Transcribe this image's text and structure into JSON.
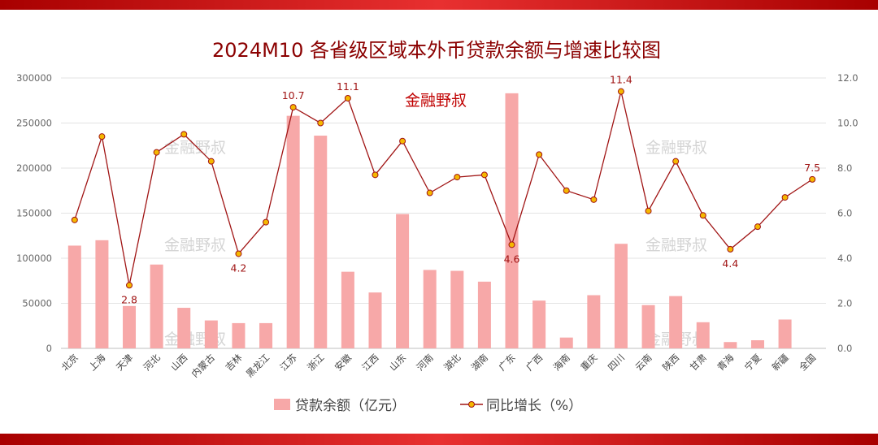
{
  "title": "2024M10 各省级区域本外币贷款余额与增速比较图",
  "brand": "金融野叔",
  "colors": {
    "bar": "#f7a8a8",
    "line": "#a01414",
    "marker_fill": "#f5b800",
    "marker_stroke": "#a01414",
    "band": "#c00000"
  },
  "chart_data": {
    "type": "bar",
    "categories": [
      "北京",
      "上海",
      "天津",
      "河北",
      "山西",
      "内蒙古",
      "吉林",
      "黑龙江",
      "江苏",
      "浙江",
      "安徽",
      "江西",
      "山东",
      "河南",
      "湖北",
      "湖南",
      "广东",
      "广西",
      "海南",
      "重庆",
      "四川",
      "云南",
      "陕西",
      "甘肃",
      "青海",
      "宁夏",
      "新疆",
      "全国"
    ],
    "series": [
      {
        "name": "贷款余额（亿元）",
        "type": "bar",
        "axis": "left",
        "values": [
          114000,
          120000,
          47000,
          93000,
          45000,
          31000,
          28000,
          28000,
          258000,
          236000,
          85000,
          62000,
          149000,
          87000,
          86000,
          74000,
          283000,
          53000,
          12000,
          59000,
          116000,
          48000,
          58000,
          29000,
          7000,
          9000,
          32000,
          null
        ]
      },
      {
        "name": "同比增长（%）",
        "type": "line",
        "axis": "right",
        "values": [
          5.7,
          9.4,
          2.8,
          8.7,
          9.5,
          8.3,
          4.2,
          5.6,
          10.7,
          10.0,
          11.1,
          7.7,
          9.2,
          6.9,
          7.6,
          7.7,
          4.6,
          8.6,
          7.0,
          6.6,
          11.4,
          6.1,
          8.3,
          5.9,
          4.4,
          5.4,
          6.7,
          7.5
        ]
      }
    ],
    "y_left": {
      "min": 0,
      "max": 300000,
      "ticks": [
        "0",
        "50000",
        "100000",
        "150000",
        "200000",
        "250000",
        "300000"
      ]
    },
    "y_right": {
      "min": 0,
      "max": 12,
      "ticks": [
        "0.0",
        "2.0",
        "4.0",
        "6.0",
        "8.0",
        "10.0",
        "12.0"
      ]
    },
    "data_labels": [
      {
        "index": 2,
        "text": "2.8",
        "position": "below"
      },
      {
        "index": 6,
        "text": "4.2",
        "position": "below"
      },
      {
        "index": 8,
        "text": "10.7",
        "position": "above"
      },
      {
        "index": 10,
        "text": "11.1",
        "position": "above"
      },
      {
        "index": 16,
        "text": "4.6",
        "position": "below"
      },
      {
        "index": 20,
        "text": "11.4",
        "position": "above"
      },
      {
        "index": 24,
        "text": "4.4",
        "position": "below"
      },
      {
        "index": 27,
        "text": "7.5",
        "position": "above"
      }
    ],
    "grid": true,
    "legend": {
      "placement": "bottom",
      "items": [
        "贷款余额（亿元）",
        "同比增长（%）"
      ]
    }
  }
}
